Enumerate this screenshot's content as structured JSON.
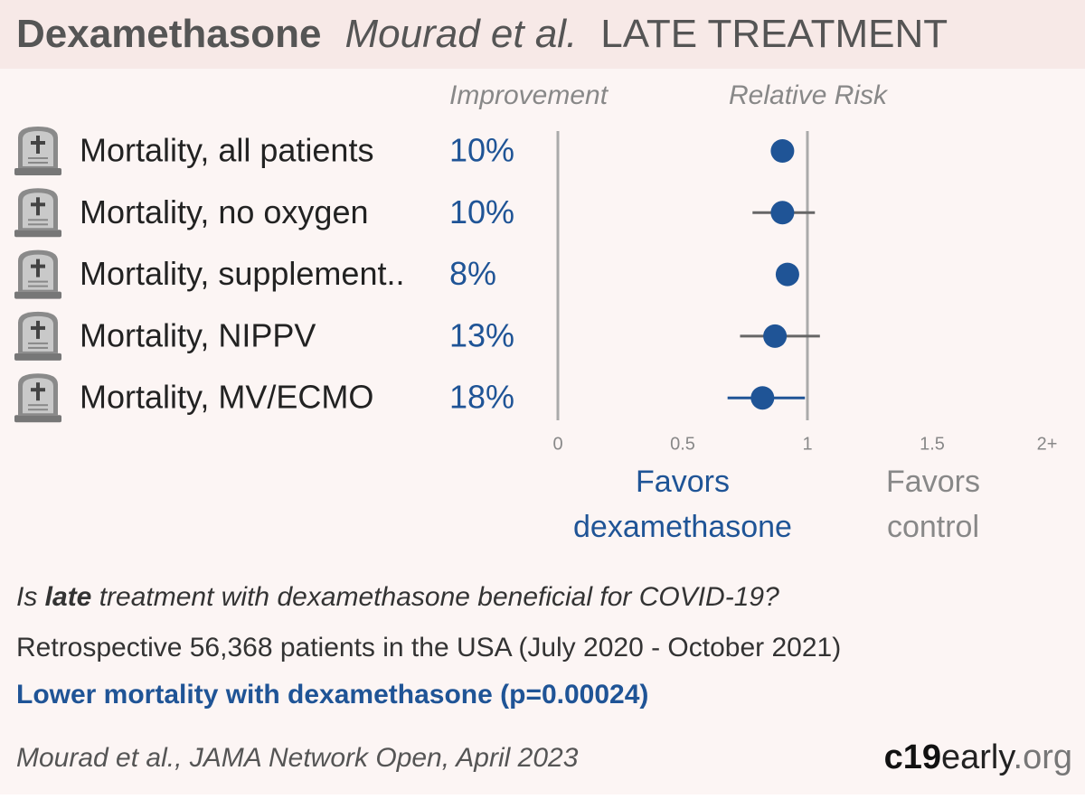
{
  "chart_data": {
    "type": "forest",
    "title": {
      "drug": "Dexamethasone",
      "study": "Mourad et al.",
      "stage": "LATE TREATMENT"
    },
    "header_improvement": "Improvement",
    "header_effect": "Relative Risk",
    "color": "#1f5496",
    "rows": [
      {
        "label": "Mortality, all patients",
        "improvement": "10%",
        "rr": 0.9,
        "ci": [
          0.87,
          0.93
        ],
        "ci_color": "#1f5496"
      },
      {
        "label": "Mortality, no oxygen",
        "improvement": "10%",
        "rr": 0.9,
        "ci": [
          0.78,
          1.03
        ],
        "ci_color": "#666666"
      },
      {
        "label": "Mortality, supplement..",
        "improvement": "8%",
        "rr": 0.92,
        "ci": [
          0.89,
          0.95
        ],
        "ci_color": "#1f5496"
      },
      {
        "label": "Mortality, NIPPV",
        "improvement": "13%",
        "rr": 0.87,
        "ci": [
          0.73,
          1.05
        ],
        "ci_color": "#666666"
      },
      {
        "label": "Mortality, MV/ECMO",
        "improvement": "18%",
        "rr": 0.82,
        "ci": [
          0.68,
          0.99
        ],
        "ci_color": "#1f5496"
      }
    ],
    "xlim": [
      0,
      2
    ],
    "xticks": [
      0,
      0.5,
      1,
      1.5,
      {
        "value": 2,
        "label": "2+"
      }
    ],
    "favors_left": [
      "Favors",
      "dexamethasone"
    ],
    "favors_right": [
      "Favors",
      "control"
    ]
  },
  "footer": {
    "question": [
      "Is ",
      "late",
      " treatment with dexamethasone beneficial for COVID-19?"
    ],
    "design": "Retrospective 56,368 patients in the USA (July 2020 - October 2021)",
    "conclusion": "Lower mortality with dexamethasone (p=0.00024)",
    "citation": "Mourad et al., JAMA Network Open, April 2023",
    "site": [
      "c19",
      "early",
      ".org"
    ]
  }
}
